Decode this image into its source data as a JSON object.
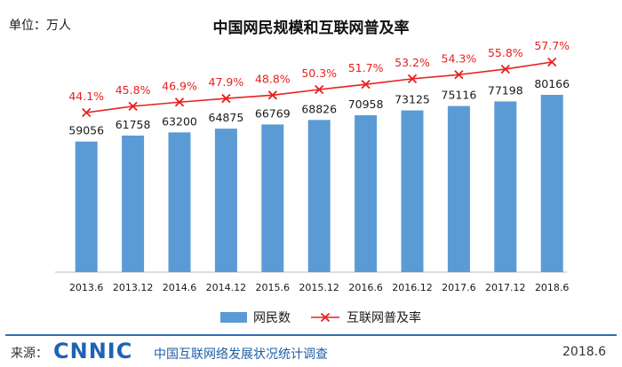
{
  "unit_label": "单位：万人",
  "chart_data": {
    "type": "bar",
    "title": "中国网民规模和互联网普及率",
    "categories": [
      "2013.6",
      "2013.12",
      "2014.6",
      "2014.12",
      "2015.6",
      "2015.12",
      "2016.6",
      "2016.12",
      "2017.6",
      "2017.12",
      "2018.6"
    ],
    "series": [
      {
        "name": "网民数",
        "type": "bar",
        "color": "#5b9bd5",
        "values": [
          59056,
          61758,
          63200,
          64875,
          66769,
          68826,
          70958,
          73125,
          75116,
          77198,
          80166
        ]
      },
      {
        "name": "互联网普及率",
        "type": "line",
        "color": "#e8201e",
        "values": [
          44.1,
          45.8,
          46.9,
          47.9,
          48.8,
          50.3,
          51.7,
          53.2,
          54.3,
          55.8,
          57.7
        ],
        "labels": [
          "44.1%",
          "45.8%",
          "46.9%",
          "47.9%",
          "48.8%",
          "50.3%",
          "51.7%",
          "53.2%",
          "54.3%",
          "55.8%",
          "57.7%"
        ]
      }
    ],
    "legend_position": "bottom-center",
    "grid": false
  },
  "footer": {
    "source_label": "来源：",
    "logo_text": "CNNIC",
    "org_text": "中国互联网络发展状况统计调查",
    "date_text": "2018.6"
  }
}
